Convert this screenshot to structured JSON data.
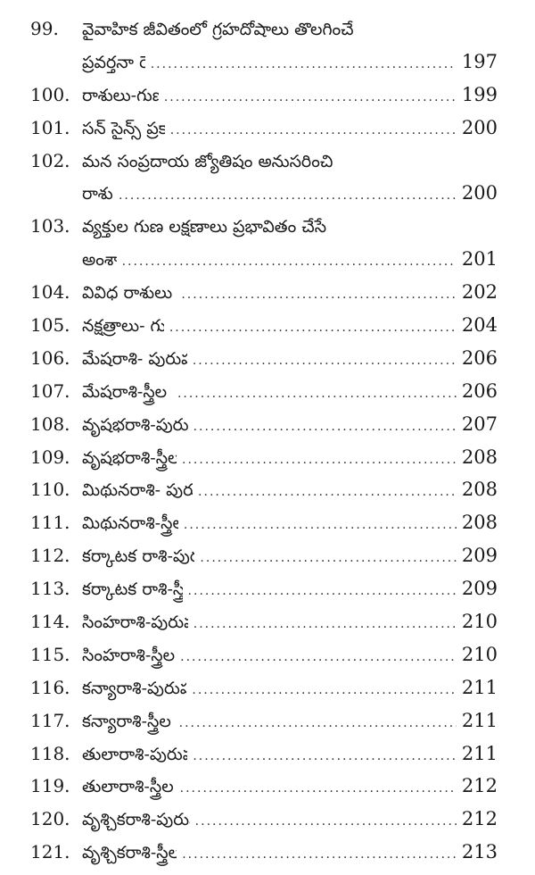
{
  "entries": [
    {
      "number": "99.",
      "lines": [
        "వైవాహిక జీవితంలో గ్రహదోషాలు తొలగించే",
        "ప్రవర్తనా రెమిడీలు."
      ],
      "page": "197"
    },
    {
      "number": "100.",
      "lines": [
        "రాశులు-గుణ లక్షణాలు."
      ],
      "page": "199"
    },
    {
      "number": "101.",
      "lines": [
        "సన్ సైన్స్ ప్రకారం రాశులు."
      ],
      "page": "200"
    },
    {
      "number": "102.",
      "lines": [
        "మన సంప్రదాయ జ్యోతిషం అనుసరించి",
        "రాశులు."
      ],
      "page": "200"
    },
    {
      "number": "103.",
      "lines": [
        "వ్యక్తుల గుణ లక్షణాలు ప్రభావితం చేసే",
        "అంశాలు."
      ],
      "page": "201"
    },
    {
      "number": "104.",
      "lines": [
        "వివిధ రాశులు -గుణ లక్షణాలు."
      ],
      "page": "202"
    },
    {
      "number": "105.",
      "lines": [
        "నక్షత్రాలు- గుణ లక్షణాలు."
      ],
      "page": "204"
    },
    {
      "number": "106.",
      "lines": [
        "మేషరాశి- పురుషుల గుణ లక్షణాలు."
      ],
      "page": "206"
    },
    {
      "number": "107.",
      "lines": [
        "మేషరాశి-స్త్రీల గుణ లక్షణాలు."
      ],
      "page": "206"
    },
    {
      "number": "108.",
      "lines": [
        "వృషభరాశి-పురుషుల గుణ లక్షణాలు"
      ],
      "page": "207"
    },
    {
      "number": "109.",
      "lines": [
        "వృషభరాశి-స్త్రీల గుణ లక్షణాలు."
      ],
      "page": "208"
    },
    {
      "number": "110.",
      "lines": [
        "మిథునరాశి- పురుషుల గుణ లక్షణాలు."
      ],
      "page": "208"
    },
    {
      "number": "111.",
      "lines": [
        "మిథునరాశి-స్త్రీల గుణ లక్షణాలు."
      ],
      "page": "208"
    },
    {
      "number": "112.",
      "lines": [
        "కర్కాటక రాశి-పురుషుల గుణ లక్షణాలు."
      ],
      "page": "209"
    },
    {
      "number": "113.",
      "lines": [
        "కర్కాటక రాశి-స్త్రీల గుణ లక్షణాలు."
      ],
      "page": "209"
    },
    {
      "number": "114.",
      "lines": [
        "సింహరాశి-పురుషుల గుణ లక్షణాలు."
      ],
      "page": "210"
    },
    {
      "number": "115.",
      "lines": [
        "సింహరాశి-స్త్రీల గుణ లక్షణాలు."
      ],
      "page": "210"
    },
    {
      "number": "116.",
      "lines": [
        "కన్యారాశి-పురుషుల గుణ లక్షణాలు."
      ],
      "page": "211"
    },
    {
      "number": "117.",
      "lines": [
        "కన్యారాశి-స్త్రీల గుణ లక్షణాలు."
      ],
      "page": "211"
    },
    {
      "number": "118.",
      "lines": [
        "తులారాశి-పురుషుల గుణ లక్షణాలు."
      ],
      "page": "211"
    },
    {
      "number": "119.",
      "lines": [
        "తులారాశి-స్త్రీల గుణ లక్షణాలు."
      ],
      "page": "212"
    },
    {
      "number": "120.",
      "lines": [
        "వృశ్చికరాశి-పురుషుల గుణ లక్షణాలు."
      ],
      "page": "212"
    },
    {
      "number": "121.",
      "lines": [
        "వృశ్చికరాశి-స్త్రీల గుణ లక్షణాలు."
      ],
      "page": "213"
    }
  ]
}
